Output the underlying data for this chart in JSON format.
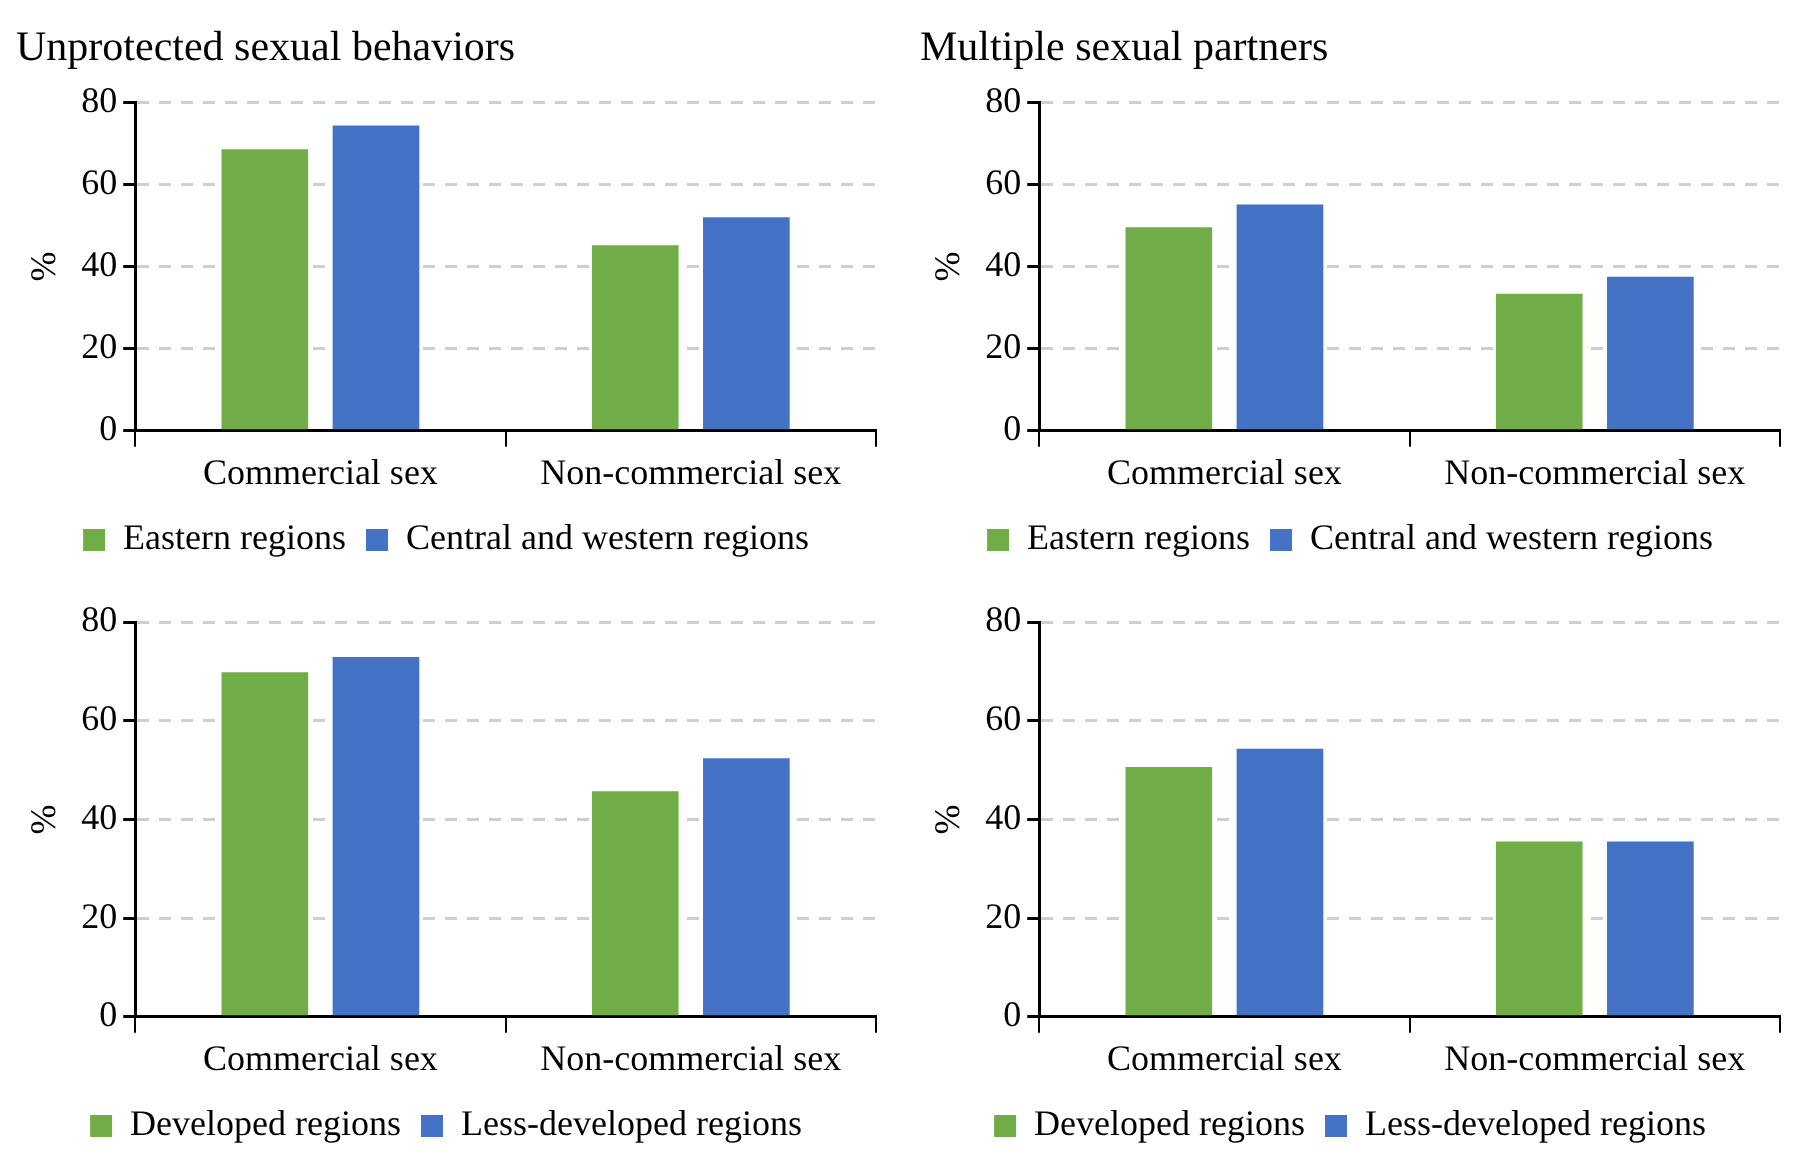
{
  "chart_data": [
    {
      "type": "bar",
      "title": "Unprotected sexual behaviors",
      "ylabel": "%",
      "categories": [
        "Commercial sex",
        "Non-commercial sex"
      ],
      "series": [
        {
          "name": "Eastern regions",
          "color": "#70ad47",
          "values": [
            68.6,
            45.2
          ]
        },
        {
          "name": "Central and western regions",
          "color": "#4472c4",
          "values": [
            74.4,
            52
          ]
        }
      ],
      "ylim": [
        0,
        80
      ],
      "yticks": [
        0,
        20,
        40,
        60,
        80
      ],
      "grid": "y",
      "legend": "bottom"
    },
    {
      "type": "bar",
      "title": "Multiple sexual partners",
      "ylabel": "%",
      "categories": [
        "Commercial sex",
        "Non-commercial sex"
      ],
      "series": [
        {
          "name": "Eastern regions",
          "color": "#70ad47",
          "values": [
            49.6,
            33.4
          ]
        },
        {
          "name": "Central and western regions",
          "color": "#4472c4",
          "values": [
            55.1,
            37.5
          ]
        }
      ],
      "ylim": [
        0,
        80
      ],
      "yticks": [
        0,
        20,
        40,
        60,
        80
      ],
      "grid": "y",
      "legend": "bottom"
    },
    {
      "type": "bar",
      "ylabel": "%",
      "categories": [
        "Commercial sex",
        "Non-commercial sex"
      ],
      "series": [
        {
          "name": "Developed regions",
          "color": "#70ad47",
          "values": [
            69.8,
            45.7
          ]
        },
        {
          "name": "Less-developed regions",
          "color": "#4472c4",
          "values": [
            72.9,
            52.4
          ]
        }
      ],
      "ylim": [
        0,
        80
      ],
      "yticks": [
        0,
        20,
        40,
        60,
        80
      ],
      "grid": "y",
      "legend": "bottom"
    },
    {
      "type": "bar",
      "ylabel": "%",
      "categories": [
        "Commercial sex",
        "Non-commercial sex"
      ],
      "series": [
        {
          "name": "Developed regions",
          "color": "#70ad47",
          "values": [
            50.6,
            35.5
          ]
        },
        {
          "name": "Less-developed regions",
          "color": "#4472c4",
          "values": [
            54.3,
            35.5
          ]
        }
      ],
      "ylim": [
        0,
        80
      ],
      "yticks": [
        0,
        20,
        40,
        60,
        80
      ],
      "grid": "y",
      "legend": "bottom"
    }
  ]
}
